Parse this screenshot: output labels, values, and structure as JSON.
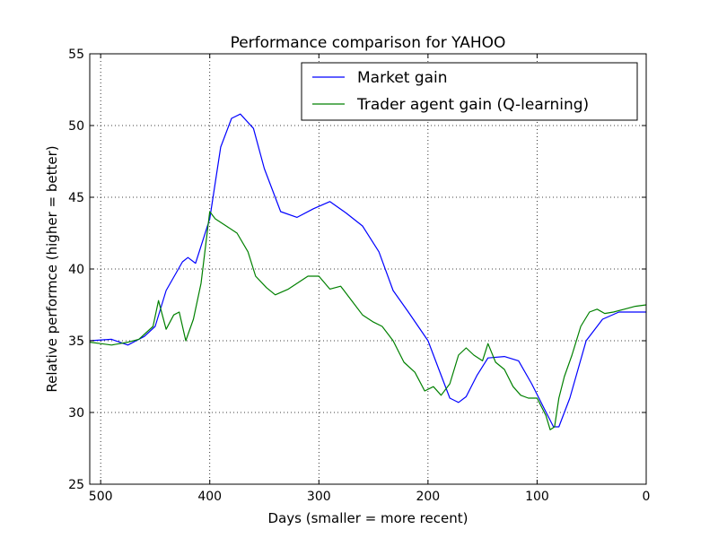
{
  "chart_data": {
    "type": "line",
    "title": "Performance comparison for YAHOO",
    "xlabel": "Days (smaller = more recent)",
    "ylabel": "Relative performce (higher = better)",
    "xlim": [
      510,
      0
    ],
    "ylim": [
      25,
      55
    ],
    "xticks": [
      500,
      400,
      300,
      200,
      100,
      0
    ],
    "yticks": [
      25,
      30,
      35,
      40,
      45,
      50,
      55
    ],
    "grid": true,
    "legend_position": "top-right",
    "colors": {
      "market": "#0000ff",
      "agent": "#008000"
    },
    "series": [
      {
        "name": "Market gain",
        "points": [
          [
            510,
            35.0
          ],
          [
            490,
            35.1
          ],
          [
            475,
            34.7
          ],
          [
            460,
            35.3
          ],
          [
            450,
            36.0
          ],
          [
            440,
            38.5
          ],
          [
            425,
            40.5
          ],
          [
            420,
            40.8
          ],
          [
            413,
            40.4
          ],
          [
            400,
            43.5
          ],
          [
            390,
            48.5
          ],
          [
            380,
            50.5
          ],
          [
            372,
            50.8
          ],
          [
            360,
            49.8
          ],
          [
            350,
            47.0
          ],
          [
            335,
            44.0
          ],
          [
            320,
            43.6
          ],
          [
            305,
            44.2
          ],
          [
            290,
            44.7
          ],
          [
            275,
            43.9
          ],
          [
            260,
            43.0
          ],
          [
            245,
            41.2
          ],
          [
            232,
            38.5
          ],
          [
            218,
            37.0
          ],
          [
            200,
            35.0
          ],
          [
            190,
            33.0
          ],
          [
            180,
            31.0
          ],
          [
            172,
            30.7
          ],
          [
            165,
            31.1
          ],
          [
            155,
            32.6
          ],
          [
            145,
            33.8
          ],
          [
            130,
            33.9
          ],
          [
            117,
            33.6
          ],
          [
            105,
            32.0
          ],
          [
            95,
            30.5
          ],
          [
            85,
            29.0
          ],
          [
            80,
            29.0
          ],
          [
            70,
            31.0
          ],
          [
            55,
            35.0
          ],
          [
            40,
            36.5
          ],
          [
            25,
            37.0
          ],
          [
            0,
            37.0
          ]
        ]
      },
      {
        "name": "Trader agent gain (Q-learning)",
        "points": [
          [
            510,
            34.9
          ],
          [
            500,
            34.8
          ],
          [
            490,
            34.7
          ],
          [
            475,
            34.9
          ],
          [
            465,
            35.1
          ],
          [
            452,
            36.0
          ],
          [
            447,
            37.8
          ],
          [
            440,
            35.8
          ],
          [
            433,
            36.8
          ],
          [
            428,
            37.0
          ],
          [
            422,
            35.0
          ],
          [
            415,
            36.5
          ],
          [
            408,
            39.0
          ],
          [
            400,
            44.0
          ],
          [
            395,
            43.5
          ],
          [
            385,
            43.0
          ],
          [
            375,
            42.5
          ],
          [
            365,
            41.2
          ],
          [
            358,
            39.5
          ],
          [
            348,
            38.7
          ],
          [
            340,
            38.2
          ],
          [
            328,
            38.6
          ],
          [
            310,
            39.5
          ],
          [
            300,
            39.5
          ],
          [
            290,
            38.6
          ],
          [
            280,
            38.8
          ],
          [
            270,
            37.8
          ],
          [
            260,
            36.8
          ],
          [
            250,
            36.3
          ],
          [
            242,
            36.0
          ],
          [
            232,
            35.0
          ],
          [
            222,
            33.5
          ],
          [
            212,
            32.8
          ],
          [
            203,
            31.5
          ],
          [
            195,
            31.8
          ],
          [
            188,
            31.2
          ],
          [
            180,
            32.0
          ],
          [
            172,
            34.0
          ],
          [
            165,
            34.5
          ],
          [
            158,
            34.0
          ],
          [
            150,
            33.6
          ],
          [
            145,
            34.8
          ],
          [
            138,
            33.5
          ],
          [
            130,
            33.0
          ],
          [
            122,
            31.8
          ],
          [
            115,
            31.2
          ],
          [
            108,
            31.0
          ],
          [
            100,
            31.0
          ],
          [
            92,
            29.8
          ],
          [
            88,
            28.8
          ],
          [
            84,
            29.0
          ],
          [
            80,
            31.0
          ],
          [
            75,
            32.5
          ],
          [
            68,
            34.0
          ],
          [
            60,
            36.0
          ],
          [
            52,
            37.0
          ],
          [
            45,
            37.2
          ],
          [
            38,
            36.9
          ],
          [
            30,
            37.0
          ],
          [
            20,
            37.2
          ],
          [
            10,
            37.4
          ],
          [
            0,
            37.5
          ]
        ]
      }
    ]
  }
}
